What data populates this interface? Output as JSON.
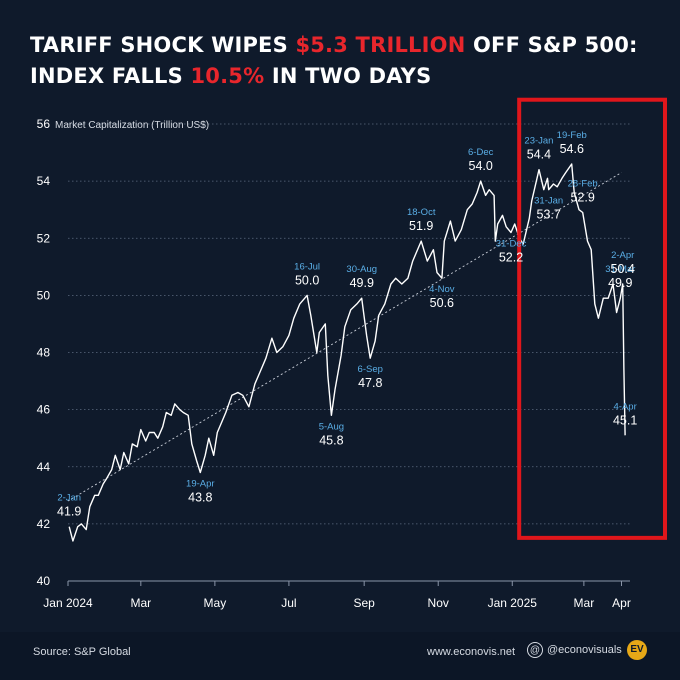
{
  "title": {
    "line1_a": "TARIFF SHOCK WIPES ",
    "line1_hl": "$5.3 TRILLION",
    "line1_b": " OFF S&P 500:",
    "line2_a": "INDEX FALLS ",
    "line2_hl": "10.5%",
    "line2_b": " IN TWO DAYS"
  },
  "colors": {
    "background": "#0f1a2b",
    "highlight": "#e8262c",
    "date_label": "#5aaee6",
    "line": "#ffffff",
    "box": "#e0161b"
  },
  "footer": {
    "source": "Source: S&P Global",
    "website": "www.econovis.net",
    "handle": "@econovisuals",
    "logo_text": "EV",
    "handle_icon": "at-icon"
  },
  "chart_data": {
    "type": "line",
    "title": "Market Capitalization (Trillion US$)",
    "ylim": [
      40,
      56
    ],
    "yticks": [
      40,
      42,
      44,
      46,
      48,
      50,
      52,
      54,
      56
    ],
    "xlim": [
      "2024-01-01",
      "2025-04-08"
    ],
    "x_tick_labels": [
      {
        "date": "2024-01-01",
        "label": "Jan 2024"
      },
      {
        "date": "2024-03-01",
        "label": "Mar"
      },
      {
        "date": "2024-05-01",
        "label": "May"
      },
      {
        "date": "2024-07-01",
        "label": "Jul"
      },
      {
        "date": "2024-09-01",
        "label": "Sep"
      },
      {
        "date": "2024-11-01",
        "label": "Nov"
      },
      {
        "date": "2025-01-01",
        "label": "Jan 2025"
      },
      {
        "date": "2025-03-01",
        "label": "Mar"
      },
      {
        "date": "2025-04-01",
        "label": "Apr"
      }
    ],
    "grid": true,
    "trend_line": {
      "start": [
        "2024-01-01",
        42.8
      ],
      "end": [
        "2025-04-01",
        54.3
      ]
    },
    "highlight_range": [
      "2025-01-10",
      "2025-04-08"
    ],
    "series": [
      {
        "points": [
          [
            "2024-01-02",
            41.9
          ],
          [
            "2024-01-05",
            41.4
          ],
          [
            "2024-01-09",
            41.9
          ],
          [
            "2024-01-12",
            42.0
          ],
          [
            "2024-01-16",
            41.8
          ],
          [
            "2024-01-19",
            42.6
          ],
          [
            "2024-01-23",
            43.0
          ],
          [
            "2024-01-26",
            43.0
          ],
          [
            "2024-01-30",
            43.4
          ],
          [
            "2024-02-02",
            43.6
          ],
          [
            "2024-02-06",
            43.9
          ],
          [
            "2024-02-09",
            44.4
          ],
          [
            "2024-02-13",
            43.9
          ],
          [
            "2024-02-16",
            44.5
          ],
          [
            "2024-02-20",
            44.1
          ],
          [
            "2024-02-23",
            44.8
          ],
          [
            "2024-02-27",
            44.7
          ],
          [
            "2024-03-01",
            45.3
          ],
          [
            "2024-03-05",
            44.9
          ],
          [
            "2024-03-08",
            45.2
          ],
          [
            "2024-03-12",
            45.2
          ],
          [
            "2024-03-15",
            45.0
          ],
          [
            "2024-03-19",
            45.4
          ],
          [
            "2024-03-22",
            45.9
          ],
          [
            "2024-03-26",
            45.8
          ],
          [
            "2024-03-29",
            46.2
          ],
          [
            "2024-04-02",
            46.0
          ],
          [
            "2024-04-05",
            45.9
          ],
          [
            "2024-04-09",
            45.8
          ],
          [
            "2024-04-12",
            44.8
          ],
          [
            "2024-04-16",
            44.2
          ],
          [
            "2024-04-19",
            43.8
          ],
          [
            "2024-04-23",
            44.4
          ],
          [
            "2024-04-26",
            45.0
          ],
          [
            "2024-04-30",
            44.4
          ],
          [
            "2024-05-03",
            45.2
          ],
          [
            "2024-05-07",
            45.6
          ],
          [
            "2024-05-10",
            45.9
          ],
          [
            "2024-05-15",
            46.5
          ],
          [
            "2024-05-20",
            46.6
          ],
          [
            "2024-05-24",
            46.5
          ],
          [
            "2024-05-29",
            46.1
          ],
          [
            "2024-06-03",
            46.9
          ],
          [
            "2024-06-07",
            47.3
          ],
          [
            "2024-06-12",
            47.8
          ],
          [
            "2024-06-17",
            48.5
          ],
          [
            "2024-06-21",
            48.0
          ],
          [
            "2024-06-26",
            48.2
          ],
          [
            "2024-07-01",
            48.6
          ],
          [
            "2024-07-05",
            49.2
          ],
          [
            "2024-07-10",
            49.7
          ],
          [
            "2024-07-16",
            50.0
          ],
          [
            "2024-07-19",
            49.3
          ],
          [
            "2024-07-24",
            48.0
          ],
          [
            "2024-07-26",
            48.7
          ],
          [
            "2024-07-31",
            49.0
          ],
          [
            "2024-08-02",
            47.2
          ],
          [
            "2024-08-05",
            45.8
          ],
          [
            "2024-08-08",
            46.7
          ],
          [
            "2024-08-13",
            47.9
          ],
          [
            "2024-08-16",
            48.9
          ],
          [
            "2024-08-21",
            49.5
          ],
          [
            "2024-08-26",
            49.7
          ],
          [
            "2024-08-30",
            49.9
          ],
          [
            "2024-09-03",
            48.6
          ],
          [
            "2024-09-06",
            47.8
          ],
          [
            "2024-09-10",
            48.4
          ],
          [
            "2024-09-13",
            49.3
          ],
          [
            "2024-09-18",
            49.7
          ],
          [
            "2024-09-23",
            50.4
          ],
          [
            "2024-09-27",
            50.6
          ],
          [
            "2024-10-02",
            50.4
          ],
          [
            "2024-10-07",
            50.6
          ],
          [
            "2024-10-11",
            51.2
          ],
          [
            "2024-10-18",
            51.9
          ],
          [
            "2024-10-23",
            51.2
          ],
          [
            "2024-10-28",
            51.6
          ],
          [
            "2024-10-31",
            50.8
          ],
          [
            "2024-11-04",
            50.6
          ],
          [
            "2024-11-06",
            51.9
          ],
          [
            "2024-11-11",
            52.6
          ],
          [
            "2024-11-15",
            51.9
          ],
          [
            "2024-11-20",
            52.3
          ],
          [
            "2024-11-25",
            53.0
          ],
          [
            "2024-11-29",
            53.2
          ],
          [
            "2024-12-03",
            53.6
          ],
          [
            "2024-12-06",
            54.0
          ],
          [
            "2024-12-10",
            53.5
          ],
          [
            "2024-12-13",
            53.7
          ],
          [
            "2024-12-17",
            53.5
          ],
          [
            "2024-12-18",
            51.9
          ],
          [
            "2024-12-20",
            52.5
          ],
          [
            "2024-12-24",
            52.8
          ],
          [
            "2024-12-27",
            52.4
          ],
          [
            "2024-12-31",
            52.2
          ],
          [
            "2025-01-03",
            52.5
          ],
          [
            "2025-01-07",
            52.0
          ],
          [
            "2025-01-10",
            51.8
          ],
          [
            "2025-01-15",
            52.7
          ],
          [
            "2025-01-17",
            53.3
          ],
          [
            "2025-01-23",
            54.4
          ],
          [
            "2025-01-27",
            53.7
          ],
          [
            "2025-01-30",
            54.1
          ],
          [
            "2025-01-31",
            53.7
          ],
          [
            "2025-02-04",
            53.9
          ],
          [
            "2025-02-07",
            53.8
          ],
          [
            "2025-02-11",
            54.1
          ],
          [
            "2025-02-14",
            54.3
          ],
          [
            "2025-02-19",
            54.6
          ],
          [
            "2025-02-21",
            53.6
          ],
          [
            "2025-02-25",
            53.0
          ],
          [
            "2025-02-28",
            52.9
          ],
          [
            "2025-03-04",
            51.9
          ],
          [
            "2025-03-07",
            51.6
          ],
          [
            "2025-03-10",
            49.7
          ],
          [
            "2025-03-13",
            49.2
          ],
          [
            "2025-03-17",
            49.9
          ],
          [
            "2025-03-21",
            49.9
          ],
          [
            "2025-03-25",
            50.4
          ],
          [
            "2025-03-28",
            49.4
          ],
          [
            "2025-03-31",
            49.9
          ],
          [
            "2025-04-02",
            50.4
          ],
          [
            "2025-04-03",
            47.4
          ],
          [
            "2025-04-04",
            45.1
          ]
        ]
      }
    ],
    "annotations": [
      {
        "date": "2024-01-02",
        "value": 41.9,
        "date_label": "2-Jan",
        "value_label": "41.9"
      },
      {
        "date": "2024-04-19",
        "value": 43.8,
        "date_label": "19-Apr",
        "value_label": "43.8"
      },
      {
        "date": "2024-07-16",
        "value": 50.0,
        "date_label": "16-Jul",
        "value_label": "50.0"
      },
      {
        "date": "2024-08-05",
        "value": 45.8,
        "date_label": "5-Aug",
        "value_label": "45.8"
      },
      {
        "date": "2024-08-30",
        "value": 49.9,
        "date_label": "30-Aug",
        "value_label": "49.9"
      },
      {
        "date": "2024-09-06",
        "value": 47.8,
        "date_label": "6-Sep",
        "value_label": "47.8"
      },
      {
        "date": "2024-10-18",
        "value": 51.9,
        "date_label": "18-Oct",
        "value_label": "51.9"
      },
      {
        "date": "2024-11-04",
        "value": 50.6,
        "date_label": "4-Nov",
        "value_label": "50.6"
      },
      {
        "date": "2024-12-06",
        "value": 54.0,
        "date_label": "6-Dec",
        "value_label": "54.0"
      },
      {
        "date": "2024-12-31",
        "value": 52.2,
        "date_label": "31-Dec",
        "value_label": "52.2"
      },
      {
        "date": "2025-01-23",
        "value": 54.4,
        "date_label": "23-Jan",
        "value_label": "54.4"
      },
      {
        "date": "2025-01-31",
        "value": 53.7,
        "date_label": "31-Jan",
        "value_label": "53.7"
      },
      {
        "date": "2025-02-19",
        "value": 54.6,
        "date_label": "19-Feb",
        "value_label": "54.6"
      },
      {
        "date": "2025-02-28",
        "value": 52.9,
        "date_label": "28-Feb",
        "value_label": "52.9"
      },
      {
        "date": "2025-03-31",
        "value": 49.9,
        "date_label": "31-Mar",
        "value_label": "49.9"
      },
      {
        "date": "2025-04-02",
        "value": 50.4,
        "date_label": "2-Apr",
        "value_label": "50.4"
      },
      {
        "date": "2025-04-04",
        "value": 45.1,
        "date_label": "4-Apr",
        "value_label": "45.1"
      }
    ]
  }
}
